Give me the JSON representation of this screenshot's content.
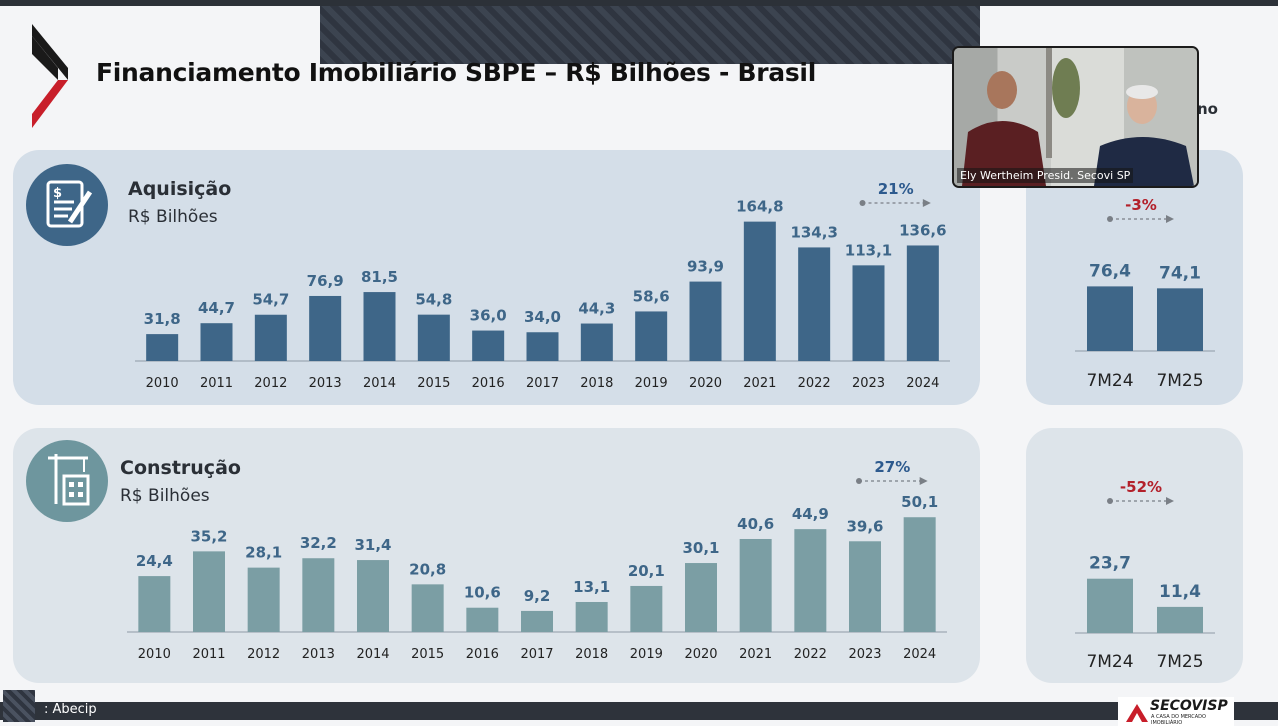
{
  "title": "Financiamento Imobiliário SBPE – R$ Bilhões - Brasil",
  "video": {
    "caption": "Ely Wertheim Presid. Secovi SP"
  },
  "side_fragment": "no",
  "source": ": Abecip",
  "brand": {
    "name": "SECOVISP",
    "tagline": "A CASA DO MERCADO IMOBILIÁRIO"
  },
  "colors": {
    "aquisicao": "#3e6688",
    "construcao": "#7b9ea4",
    "negative": "#b3202a",
    "positive": "#2d5a8e",
    "logo_red": "#c81e2a"
  },
  "icons": {
    "aquisicao": "document-pen-icon",
    "construcao": "building-crane-icon",
    "logo": "secovi-chevron-logo"
  },
  "chart_data": [
    {
      "type": "bar",
      "title": "Aquisição",
      "subtitle": "R$ Bilhões",
      "categories": [
        "2010",
        "2011",
        "2012",
        "2013",
        "2014",
        "2015",
        "2016",
        "2017",
        "2018",
        "2019",
        "2020",
        "2021",
        "2022",
        "2023",
        "2024"
      ],
      "values": [
        31.8,
        44.7,
        54.7,
        76.9,
        81.5,
        54.8,
        36.0,
        34.0,
        44.3,
        58.6,
        93.9,
        164.8,
        134.3,
        113.1,
        136.6
      ],
      "labels": [
        "31,8",
        "44,7",
        "54,7",
        "76,9",
        "81,5",
        "54,8",
        "36,0",
        "34,0",
        "44,3",
        "58,6",
        "93,9",
        "164,8",
        "134,3",
        "113,1",
        "136,6"
      ],
      "annotation": {
        "text": "21%",
        "from": "2023",
        "to": "2024"
      },
      "ylim": [
        0,
        175
      ]
    },
    {
      "type": "bar",
      "categories": [
        "7M24",
        "7M25"
      ],
      "values": [
        76.4,
        74.1
      ],
      "labels": [
        "76,4",
        "74,1"
      ],
      "annotation": {
        "text": "-3%"
      },
      "ylim": [
        0,
        175
      ]
    },
    {
      "type": "bar",
      "title": "Construção",
      "subtitle": "R$ Bilhões",
      "categories": [
        "2010",
        "2011",
        "2012",
        "2013",
        "2014",
        "2015",
        "2016",
        "2017",
        "2018",
        "2019",
        "2020",
        "2021",
        "2022",
        "2023",
        "2024"
      ],
      "values": [
        24.4,
        35.2,
        28.1,
        32.2,
        31.4,
        20.8,
        10.6,
        9.2,
        13.1,
        20.1,
        30.1,
        40.6,
        44.9,
        39.6,
        50.1
      ],
      "labels": [
        "24,4",
        "35,2",
        "28,1",
        "32,2",
        "31,4",
        "20,8",
        "10,6",
        "9,2",
        "13,1",
        "20,1",
        "30,1",
        "40,6",
        "44,9",
        "39,6",
        "50,1"
      ],
      "annotation": {
        "text": "27%",
        "from": "2023",
        "to": "2024"
      },
      "ylim": [
        0,
        55
      ]
    },
    {
      "type": "bar",
      "categories": [
        "7M24",
        "7M25"
      ],
      "values": [
        23.7,
        11.4
      ],
      "labels": [
        "23,7",
        "11,4"
      ],
      "annotation": {
        "text": "-52%"
      },
      "ylim": [
        0,
        55
      ]
    }
  ]
}
